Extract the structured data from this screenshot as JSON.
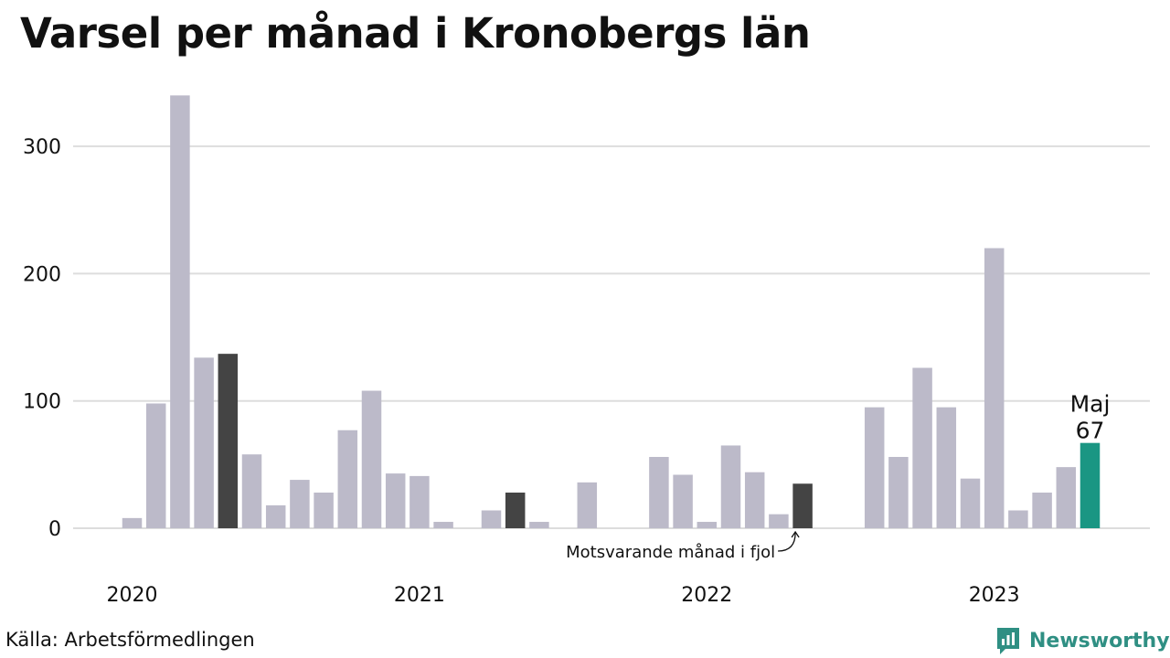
{
  "title": "Varsel per månad i Kronobergs län",
  "source": "Källa: Arbetsförmedlingen",
  "brand": "Newsworthy",
  "colors": {
    "bar": "#bcbac9",
    "highlight_previous": "#444444",
    "current": "#1a9683",
    "grid": "#dddddd",
    "brand": "#2f8f83"
  },
  "annotations": {
    "current_month": "Maj",
    "current_value": "67",
    "previous_note": "Motsvarande månad i fjol"
  },
  "chart_data": {
    "type": "bar",
    "title": "Varsel per månad i Kronobergs län",
    "xlabel": "",
    "ylabel": "",
    "ylim": [
      0,
      340
    ],
    "y_ticks": [
      0,
      100,
      200,
      300
    ],
    "grid": true,
    "x_tick_labels": [
      "2020",
      "2021",
      "2022",
      "2023"
    ],
    "categories": [
      "2020-01",
      "2020-02",
      "2020-03",
      "2020-04",
      "2020-05",
      "2020-06",
      "2020-07",
      "2020-08",
      "2020-09",
      "2020-10",
      "2020-11",
      "2020-12",
      "2021-01",
      "2021-02",
      "2021-03",
      "2021-04",
      "2021-05",
      "2021-06",
      "2021-07",
      "2021-08",
      "2021-09",
      "2021-10",
      "2021-11",
      "2021-12",
      "2022-01",
      "2022-02",
      "2022-03",
      "2022-04",
      "2022-05",
      "2022-06",
      "2022-07",
      "2022-08",
      "2022-09",
      "2022-10",
      "2022-11",
      "2022-12",
      "2023-01",
      "2023-02",
      "2023-03",
      "2023-04",
      "2023-05"
    ],
    "values": [
      8,
      98,
      340,
      134,
      137,
      58,
      18,
      38,
      28,
      77,
      108,
      43,
      41,
      5,
      0,
      14,
      28,
      5,
      0,
      36,
      0,
      0,
      56,
      42,
      5,
      65,
      44,
      11,
      35,
      0,
      0,
      95,
      56,
      126,
      95,
      39,
      220,
      14,
      28,
      48,
      67
    ],
    "highlighted": [
      "2020-05",
      "2021-05",
      "2022-05"
    ],
    "current": "2023-05"
  }
}
